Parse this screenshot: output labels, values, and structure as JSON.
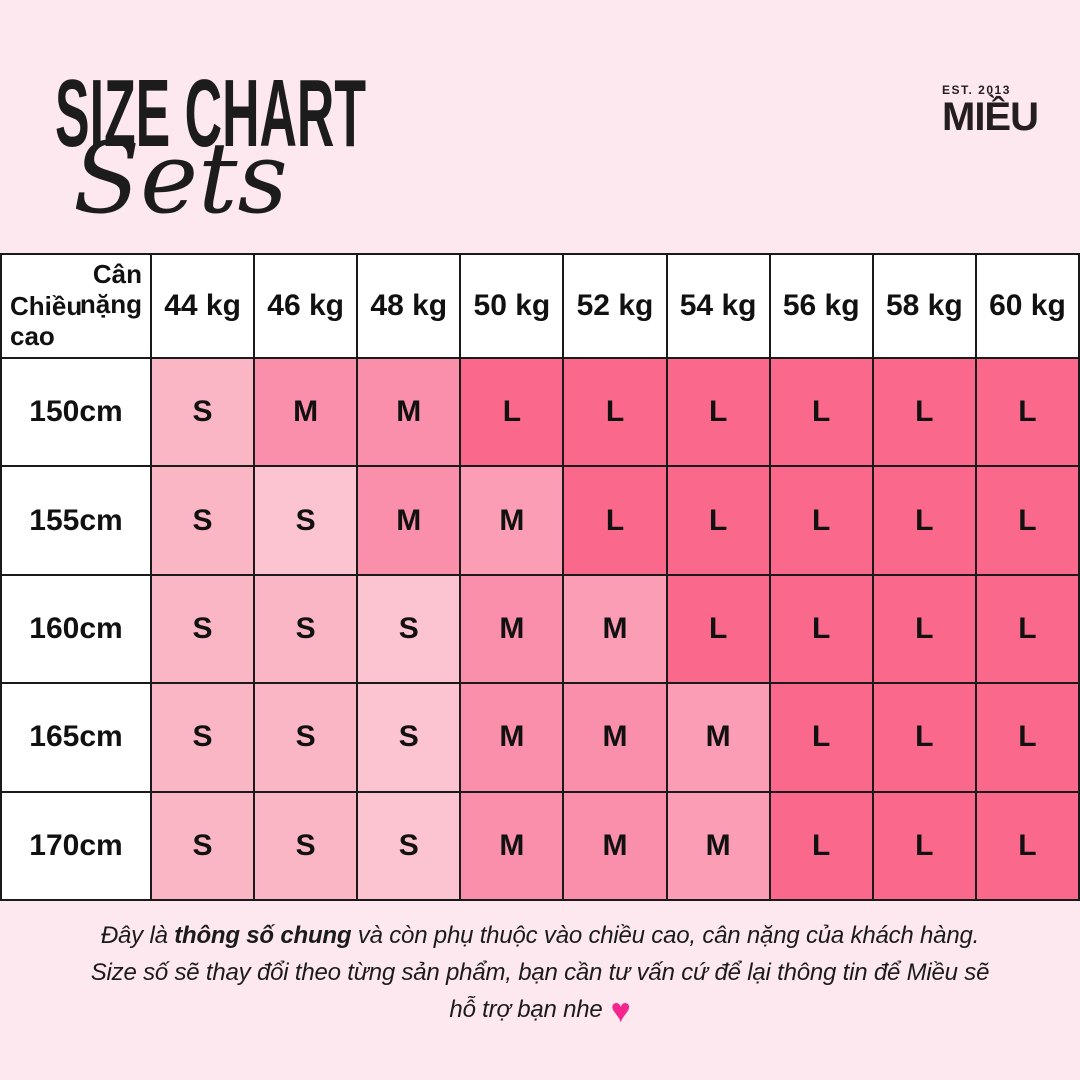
{
  "page": {
    "background_color": "#fce8ee",
    "text_color": "#1a1a1a"
  },
  "header": {
    "title": "SIZE CHART",
    "subtitle": "Sets",
    "logo": {
      "est": "EST. 2013",
      "name": "MIỀU"
    }
  },
  "table": {
    "corner": {
      "top_label": "Cân nặng",
      "bottom_label": "Chiều cao"
    },
    "weight_headers": [
      "44 kg",
      "46 kg",
      "48 kg",
      "50 kg",
      "52 kg",
      "54 kg",
      "56 kg",
      "58 kg",
      "60 kg"
    ],
    "height_rows": [
      {
        "label": "150cm",
        "cells": [
          {
            "label": "S",
            "shade": "s"
          },
          {
            "label": "M",
            "shade": "m"
          },
          {
            "label": "M",
            "shade": "m"
          },
          {
            "label": "L",
            "shade": "l"
          },
          {
            "label": "L",
            "shade": "l"
          },
          {
            "label": "L",
            "shade": "l"
          },
          {
            "label": "L",
            "shade": "l"
          },
          {
            "label": "L",
            "shade": "l"
          },
          {
            "label": "L",
            "shade": "l"
          }
        ]
      },
      {
        "label": "155cm",
        "cells": [
          {
            "label": "S",
            "shade": "s"
          },
          {
            "label": "S",
            "shade": "s_light"
          },
          {
            "label": "M",
            "shade": "m"
          },
          {
            "label": "M",
            "shade": "m_light"
          },
          {
            "label": "L",
            "shade": "l"
          },
          {
            "label": "L",
            "shade": "l"
          },
          {
            "label": "L",
            "shade": "l"
          },
          {
            "label": "L",
            "shade": "l"
          },
          {
            "label": "L",
            "shade": "l"
          }
        ]
      },
      {
        "label": "160cm",
        "cells": [
          {
            "label": "S",
            "shade": "s"
          },
          {
            "label": "S",
            "shade": "s"
          },
          {
            "label": "S",
            "shade": "s_light"
          },
          {
            "label": "M",
            "shade": "m"
          },
          {
            "label": "M",
            "shade": "m_light"
          },
          {
            "label": "L",
            "shade": "l"
          },
          {
            "label": "L",
            "shade": "l"
          },
          {
            "label": "L",
            "shade": "l"
          },
          {
            "label": "L",
            "shade": "l"
          }
        ]
      },
      {
        "label": "165cm",
        "cells": [
          {
            "label": "S",
            "shade": "s"
          },
          {
            "label": "S",
            "shade": "s"
          },
          {
            "label": "S",
            "shade": "s_light"
          },
          {
            "label": "M",
            "shade": "m"
          },
          {
            "label": "M",
            "shade": "m"
          },
          {
            "label": "M",
            "shade": "m_light"
          },
          {
            "label": "L",
            "shade": "l"
          },
          {
            "label": "L",
            "shade": "l"
          },
          {
            "label": "L",
            "shade": "l"
          }
        ]
      },
      {
        "label": "170cm",
        "cells": [
          {
            "label": "S",
            "shade": "s"
          },
          {
            "label": "S",
            "shade": "s"
          },
          {
            "label": "S",
            "shade": "s_light"
          },
          {
            "label": "M",
            "shade": "m"
          },
          {
            "label": "M",
            "shade": "m"
          },
          {
            "label": "M",
            "shade": "m_light"
          },
          {
            "label": "L",
            "shade": "l"
          },
          {
            "label": "L",
            "shade": "l"
          },
          {
            "label": "L",
            "shade": "l"
          }
        ]
      }
    ],
    "palette": {
      "s": "#fbb6c6",
      "s_light": "#fcc3d1",
      "m": "#f98fab",
      "m_light": "#fa9db5",
      "l": "#fa698c",
      "border": "#1a1a1a",
      "header_bg": "#ffffff"
    }
  },
  "footer": {
    "line1_prefix": "Đây là ",
    "line1_bold": "thông số chung",
    "line1_suffix": " và còn phụ thuộc vào chiều cao, cân nặng của khách hàng.",
    "line2": "Size số sẽ thay đổi theo từng sản phẩm, bạn cần tư vấn cứ để lại thông tin để Miều sẽ",
    "line3": "hỗ trợ bạn nhe",
    "heart_icon": "♥",
    "heart_color": "#f4258c"
  }
}
